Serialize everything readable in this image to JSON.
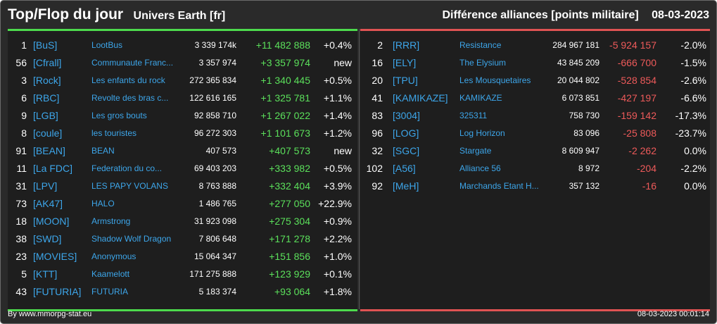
{
  "header": {
    "title": "Top/Flop du jour",
    "universe": "Univers Earth [fr]",
    "ranking": "Différence alliances [points militaire]",
    "date": "08-03-2023"
  },
  "top": [
    {
      "rank": "1",
      "tag": "[BuS]",
      "name": "LootBus",
      "points": "3 339 174k",
      "diff": "+11 482 888",
      "pct": "+0.4%"
    },
    {
      "rank": "56",
      "tag": "[Cfrall]",
      "name": "Communaute Franc...",
      "points": "3 357 974",
      "diff": "+3 357 974",
      "pct": "new"
    },
    {
      "rank": "3",
      "tag": "[Rock]",
      "name": "Les enfants du rock",
      "points": "272 365 834",
      "diff": "+1 340 445",
      "pct": "+0.5%"
    },
    {
      "rank": "6",
      "tag": "[RBC]",
      "name": "Revolte des bras c...",
      "points": "122 616 165",
      "diff": "+1 325 781",
      "pct": "+1.1%"
    },
    {
      "rank": "9",
      "tag": "[LGB]",
      "name": "Les gros bouts",
      "points": "92 858 710",
      "diff": "+1 267 022",
      "pct": "+1.4%"
    },
    {
      "rank": "8",
      "tag": "[coule]",
      "name": "les touristes",
      "points": "96 272 303",
      "diff": "+1 101 673",
      "pct": "+1.2%"
    },
    {
      "rank": "91",
      "tag": "[BEAN]",
      "name": "BEAN",
      "points": "407 573",
      "diff": "+407 573",
      "pct": "new"
    },
    {
      "rank": "11",
      "tag": "[La FDC]",
      "name": "Federation du co...",
      "points": "69 403 203",
      "diff": "+333 982",
      "pct": "+0.5%"
    },
    {
      "rank": "31",
      "tag": "[LPV]",
      "name": "LES PAPY VOLANS",
      "points": "8 763 888",
      "diff": "+332 404",
      "pct": "+3.9%"
    },
    {
      "rank": "73",
      "tag": "[AK47]",
      "name": "HALO",
      "points": "1 486 765",
      "diff": "+277 050",
      "pct": "+22.9%"
    },
    {
      "rank": "18",
      "tag": "[MOON]",
      "name": "Armstrong",
      "points": "31 923 098",
      "diff": "+275 304",
      "pct": "+0.9%"
    },
    {
      "rank": "38",
      "tag": "[SWD]",
      "name": "Shadow Wolf Dragon",
      "points": "7 806 648",
      "diff": "+171 278",
      "pct": "+2.2%"
    },
    {
      "rank": "23",
      "tag": "[MOVIES]",
      "name": "Anonymous",
      "points": "15 064 347",
      "diff": "+151 856",
      "pct": "+1.0%"
    },
    {
      "rank": "5",
      "tag": "[KTT]",
      "name": "Kaamelott",
      "points": "171 275 888",
      "diff": "+123 929",
      "pct": "+0.1%"
    },
    {
      "rank": "43",
      "tag": "[FUTURIA]",
      "name": "FUTURIA",
      "points": "5 183 374",
      "diff": "+93 064",
      "pct": "+1.8%"
    }
  ],
  "flop": [
    {
      "rank": "2",
      "tag": "[RRR]",
      "name": "Resistance",
      "points": "284 967 181",
      "diff": "-5 924 157",
      "pct": "-2.0%"
    },
    {
      "rank": "16",
      "tag": "[ELY]",
      "name": "The Elysium",
      "points": "43 845 209",
      "diff": "-666 700",
      "pct": "-1.5%"
    },
    {
      "rank": "20",
      "tag": "[TPU]",
      "name": "Les Mousquetaires",
      "points": "20 044 802",
      "diff": "-528 854",
      "pct": "-2.6%"
    },
    {
      "rank": "41",
      "tag": "[KAMIKAZE]",
      "name": "KAMIKAZE",
      "points": "6 073 851",
      "diff": "-427 197",
      "pct": "-6.6%"
    },
    {
      "rank": "83",
      "tag": "[3004]",
      "name": "325311",
      "points": "758 730",
      "diff": "-159 142",
      "pct": "-17.3%"
    },
    {
      "rank": "96",
      "tag": "[LOG]",
      "name": "Log Horizon",
      "points": "83 096",
      "diff": "-25 808",
      "pct": "-23.7%"
    },
    {
      "rank": "32",
      "tag": "[SGC]",
      "name": "Stargate",
      "points": "8 609 947",
      "diff": "-2 262",
      "pct": "0.0%"
    },
    {
      "rank": "102",
      "tag": "[A56]",
      "name": "Alliance 56",
      "points": "8 972",
      "diff": "-204",
      "pct": "-2.2%"
    },
    {
      "rank": "92",
      "tag": "[MeH]",
      "name": "Marchands Etant H...",
      "points": "357 132",
      "diff": "-16",
      "pct": "0.0%"
    }
  ],
  "footer": {
    "source": "By www.mmorpg-stat.eu",
    "timestamp": "08-03-2023 00:01:14"
  },
  "colors": {
    "top_accent": "#4ddb4d",
    "flop_accent": "#e05353",
    "link": "#3da6ea"
  }
}
